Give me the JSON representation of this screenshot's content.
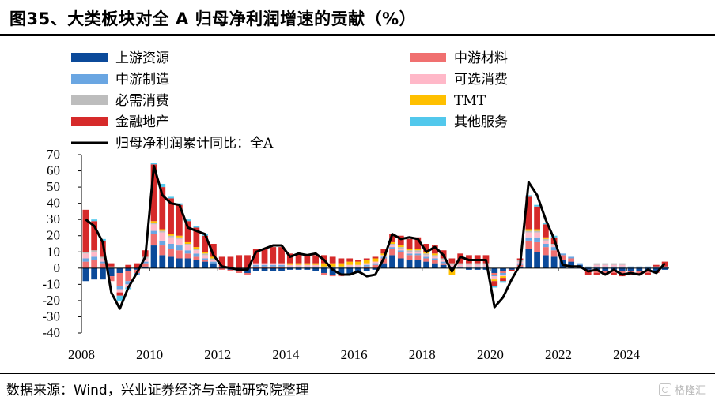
{
  "title": "图35、大类板块对全 A 归母净利润增速的贡献（%）",
  "source": "数据来源：Wind，兴业证券经济与金融研究院整理",
  "watermark": "格隆汇",
  "chart_data": {
    "type": "bar",
    "stacked": true,
    "ylim": [
      -40,
      70
    ],
    "yticks": [
      70,
      60,
      50,
      40,
      30,
      20,
      10,
      0,
      -10,
      -20,
      -30,
      -40
    ],
    "xtick_labels": [
      "2008",
      "2010",
      "2012",
      "2014",
      "2016",
      "2018",
      "2020",
      "2022",
      "2024"
    ],
    "legend": [
      {
        "key": "upstream",
        "label": "上游资源",
        "color": "#0b4a9a",
        "kind": "bar"
      },
      {
        "key": "midmat",
        "label": "中游材料",
        "color": "#f07070",
        "kind": "bar"
      },
      {
        "key": "midmfg",
        "label": "中游制造",
        "color": "#6aa6e2",
        "kind": "bar"
      },
      {
        "key": "optional",
        "label": "可选消费",
        "color": "#ffb8c8",
        "kind": "bar"
      },
      {
        "key": "necessary",
        "label": "必需消费",
        "color": "#bdbdbd",
        "kind": "bar"
      },
      {
        "key": "tmt",
        "label": "TMT",
        "color": "#ffc000",
        "kind": "bar"
      },
      {
        "key": "finance",
        "label": "金融地产",
        "color": "#d62a2a",
        "kind": "bar"
      },
      {
        "key": "others",
        "label": "其他服务",
        "color": "#52c8ec",
        "kind": "bar"
      },
      {
        "key": "total",
        "label": "归母净利润累计同比：全A",
        "color": "#000000",
        "kind": "line"
      }
    ],
    "quarters": [
      "2008Q1",
      "2008Q2",
      "2008Q3",
      "2008Q4",
      "2009Q1",
      "2009Q2",
      "2009Q3",
      "2009Q4",
      "2010Q1",
      "2010Q2",
      "2010Q3",
      "2010Q4",
      "2011Q1",
      "2011Q2",
      "2011Q3",
      "2011Q4",
      "2012Q1",
      "2012Q2",
      "2012Q3",
      "2012Q4",
      "2013Q1",
      "2013Q2",
      "2013Q3",
      "2013Q4",
      "2014Q1",
      "2014Q2",
      "2014Q3",
      "2014Q4",
      "2015Q1",
      "2015Q2",
      "2015Q3",
      "2015Q4",
      "2016Q1",
      "2016Q2",
      "2016Q3",
      "2016Q4",
      "2017Q1",
      "2017Q2",
      "2017Q3",
      "2017Q4",
      "2018Q1",
      "2018Q2",
      "2018Q3",
      "2018Q4",
      "2019Q1",
      "2019Q2",
      "2019Q3",
      "2019Q4",
      "2020Q1",
      "2020Q2",
      "2020Q3",
      "2020Q4",
      "2021Q1",
      "2021Q2",
      "2021Q3",
      "2021Q4",
      "2022Q1",
      "2022Q2",
      "2022Q3",
      "2022Q4",
      "2023Q1",
      "2023Q2",
      "2023Q3",
      "2023Q4",
      "2024Q1",
      "2024Q2",
      "2024Q3",
      "2024Q4",
      "2025Q1"
    ],
    "series": {
      "upstream": [
        -8,
        -7,
        -7,
        -5,
        -3,
        -2,
        -1,
        1,
        14,
        8,
        7,
        6,
        6,
        5,
        4,
        3,
        1,
        -1,
        -2,
        -3,
        -2,
        -2,
        -2,
        -2,
        -1,
        -1,
        -1,
        -2,
        -3,
        -4,
        -4,
        -4,
        -3,
        -2,
        -1,
        3,
        8,
        6,
        5,
        5,
        4,
        3,
        2,
        1,
        0,
        -1,
        -1,
        -1,
        -3,
        -2,
        -1,
        1,
        12,
        10,
        8,
        7,
        5,
        4,
        2,
        -1,
        -2,
        -2,
        -2,
        -2,
        -2,
        -2,
        -2,
        -2,
        -1
      ],
      "midmat": [
        4,
        5,
        3,
        -3,
        -8,
        -6,
        -2,
        2,
        7,
        6,
        5,
        5,
        3,
        2,
        1,
        0,
        -1,
        -1,
        -1,
        -1,
        1,
        1,
        1,
        1,
        0,
        0,
        0,
        0,
        -1,
        -1,
        -1,
        0,
        0,
        1,
        2,
        3,
        4,
        4,
        3,
        3,
        2,
        2,
        1,
        0,
        0,
        0,
        0,
        0,
        -1,
        -1,
        0,
        1,
        5,
        6,
        5,
        4,
        3,
        2,
        0,
        -1,
        -1,
        -1,
        -1,
        -1,
        -1,
        -1,
        -1,
        -1,
        0
      ],
      "midmfg": [
        2,
        2,
        1,
        0,
        -2,
        -2,
        -1,
        1,
        2,
        3,
        3,
        3,
        2,
        2,
        1,
        1,
        0,
        0,
        0,
        0,
        1,
        1,
        1,
        1,
        1,
        1,
        1,
        1,
        1,
        1,
        1,
        1,
        1,
        1,
        1,
        1,
        1,
        1,
        1,
        1,
        1,
        1,
        1,
        0,
        1,
        1,
        1,
        1,
        -1,
        -1,
        0,
        1,
        2,
        3,
        2,
        2,
        1,
        1,
        1,
        1,
        1,
        1,
        1,
        1,
        1,
        1,
        1,
        1,
        1
      ],
      "optional": [
        3,
        3,
        2,
        0,
        -2,
        -2,
        0,
        2,
        4,
        5,
        4,
        4,
        3,
        2,
        2,
        1,
        0,
        0,
        0,
        0,
        1,
        1,
        1,
        1,
        1,
        1,
        1,
        1,
        0,
        0,
        0,
        1,
        1,
        1,
        1,
        1,
        1,
        1,
        1,
        1,
        1,
        1,
        1,
        1,
        1,
        1,
        1,
        1,
        -2,
        -1,
        0,
        1,
        3,
        3,
        2,
        1,
        0,
        0,
        0,
        0,
        1,
        1,
        1,
        1,
        0,
        0,
        0,
        0,
        0
      ],
      "necessary": [
        1,
        1,
        1,
        1,
        0,
        0,
        0,
        1,
        1,
        1,
        1,
        1,
        1,
        1,
        1,
        1,
        0,
        0,
        0,
        0,
        0,
        0,
        0,
        0,
        0,
        0,
        0,
        0,
        0,
        0,
        0,
        0,
        0,
        0,
        0,
        0,
        1,
        1,
        1,
        1,
        1,
        1,
        1,
        1,
        1,
        1,
        1,
        1,
        0,
        0,
        0,
        1,
        1,
        1,
        1,
        1,
        0,
        0,
        0,
        0,
        1,
        1,
        1,
        1,
        0,
        0,
        0,
        0,
        0
      ],
      "tmt": [
        0,
        0,
        0,
        0,
        0,
        0,
        0,
        0,
        1,
        1,
        1,
        1,
        1,
        1,
        1,
        1,
        0,
        0,
        0,
        0,
        0,
        0,
        0,
        0,
        1,
        1,
        1,
        1,
        2,
        2,
        2,
        2,
        2,
        2,
        2,
        1,
        1,
        1,
        1,
        1,
        1,
        1,
        0,
        -4,
        0,
        0,
        0,
        0,
        -1,
        -1,
        0,
        0,
        1,
        1,
        1,
        0,
        0,
        0,
        0,
        0,
        0,
        0,
        0,
        0,
        0,
        0,
        0,
        0,
        0
      ],
      "finance": [
        26,
        18,
        10,
        2,
        -2,
        2,
        3,
        4,
        35,
        26,
        22,
        19,
        13,
        12,
        10,
        8,
        6,
        7,
        8,
        8,
        9,
        9,
        10,
        10,
        6,
        6,
        5,
        5,
        5,
        4,
        3,
        2,
        1,
        1,
        1,
        3,
        5,
        6,
        6,
        7,
        5,
        5,
        5,
        3,
        6,
        5,
        5,
        5,
        -3,
        -2,
        -1,
        1,
        20,
        14,
        8,
        4,
        0,
        0,
        0,
        -2,
        -1,
        -1,
        -1,
        -2,
        -1,
        -1,
        -1,
        1,
        3
      ],
      "others": [
        0,
        1,
        1,
        0,
        -3,
        -1,
        0,
        0,
        1,
        2,
        1,
        1,
        1,
        1,
        1,
        0,
        0,
        0,
        0,
        0,
        0,
        0,
        0,
        0,
        0,
        0,
        0,
        0,
        0,
        0,
        0,
        0,
        0,
        0,
        0,
        0,
        0,
        0,
        0,
        0,
        0,
        0,
        0,
        0,
        0,
        0,
        0,
        0,
        -1,
        -1,
        0,
        0,
        1,
        1,
        1,
        1,
        0,
        0,
        0,
        0,
        0,
        0,
        0,
        0,
        0,
        0,
        0,
        0,
        0
      ],
      "total": [
        30,
        26,
        16,
        -15,
        -25,
        -12,
        -3,
        7,
        63,
        45,
        40,
        39,
        25,
        23,
        21,
        8,
        1,
        0,
        -1,
        -1,
        10,
        12,
        14,
        14,
        7,
        9,
        8,
        9,
        5,
        -1,
        -4,
        -4,
        -2,
        -5,
        -4,
        6,
        21,
        18,
        19,
        18,
        10,
        13,
        8,
        -2,
        7,
        5,
        5,
        5,
        -24,
        -18,
        -7,
        2,
        53,
        45,
        30,
        18,
        2,
        1,
        1,
        -2,
        -1,
        -4,
        -1,
        -4,
        -3,
        -4,
        -1,
        -3,
        3
      ]
    }
  }
}
